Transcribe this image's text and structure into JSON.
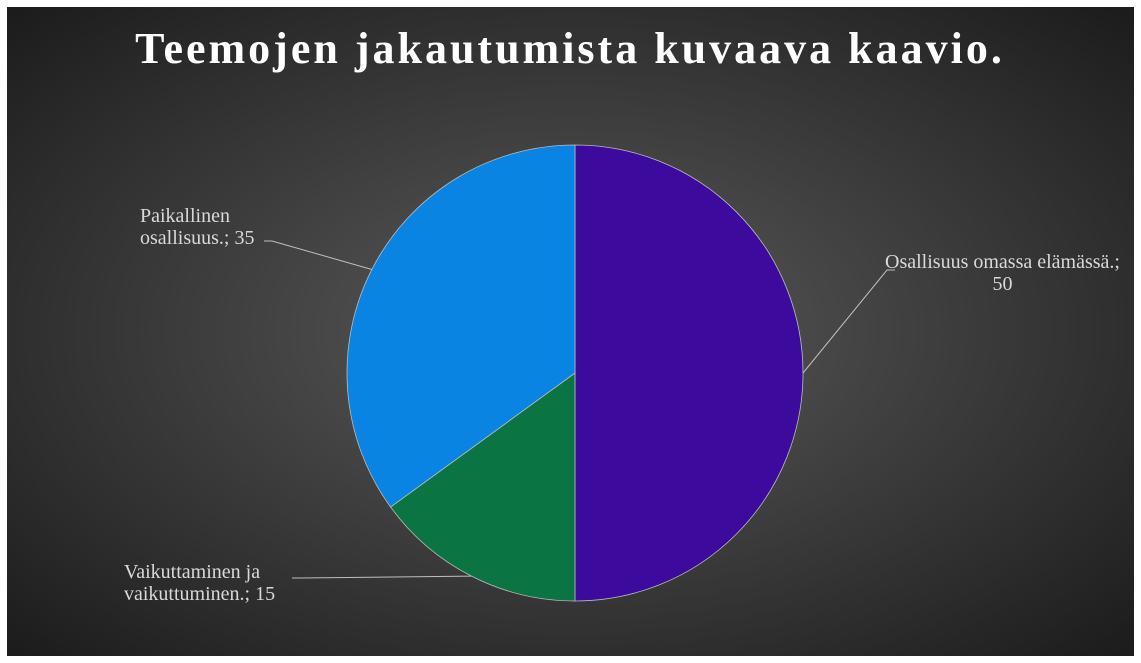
{
  "chart_data": {
    "type": "pie",
    "title": "Teemojen jakautumista kuvaava kaavio.",
    "values": [
      50,
      15,
      35
    ],
    "value_labels": [
      "Osallisuus omassa elämässä.; 50",
      "Vaikuttaminen ja vaikuttuminen.; 15",
      "Paikallinen osallisuus.; 35"
    ],
    "colors": [
      "#3d0a9e",
      "#0b7443",
      "#0a84e2"
    ]
  }
}
